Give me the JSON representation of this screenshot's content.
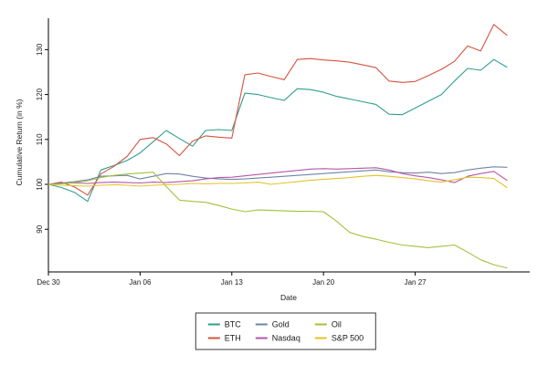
{
  "chart_data": {
    "type": "line",
    "title": "",
    "xlabel": "Date",
    "ylabel": "Cumulative Return (in %)",
    "grid": "off",
    "legend_position": "bottom-center",
    "ylim": [
      80.5,
      138
    ],
    "y_ticks": [
      90,
      100,
      110,
      120,
      130
    ],
    "x_tick_labels": [
      "Dec 30",
      "Jan 06",
      "Jan 13",
      "Jan 20",
      "Jan 27"
    ],
    "x_tick_positions": [
      0,
      7,
      14,
      21,
      28
    ],
    "x": [
      "Dec 30",
      "Dec 31",
      "Jan 01",
      "Jan 02",
      "Jan 03",
      "Jan 04",
      "Jan 05",
      "Jan 06",
      "Jan 07",
      "Jan 08",
      "Jan 09",
      "Jan 10",
      "Jan 11",
      "Jan 12",
      "Jan 13",
      "Jan 14",
      "Jan 15",
      "Jan 16",
      "Jan 17",
      "Jan 18",
      "Jan 19",
      "Jan 20",
      "Jan 21",
      "Jan 22",
      "Jan 23",
      "Jan 24",
      "Jan 25",
      "Jan 26",
      "Jan 27",
      "Jan 28",
      "Jan 29",
      "Jan 30",
      "Jan 31",
      "Feb 01",
      "Feb 02",
      "Feb 03"
    ],
    "series": [
      {
        "name": "BTC",
        "color": "#2e9e8e",
        "values": [
          100,
          99.3,
          98.2,
          96.2,
          103.2,
          104.2,
          105.3,
          107.0,
          109.5,
          112.0,
          110.2,
          108.5,
          112.0,
          112.2,
          112.0,
          120.3,
          120.0,
          119.3,
          118.7,
          121.3,
          121.1,
          120.5,
          119.6,
          119.0,
          118.4,
          117.8,
          115.6,
          115.5,
          117.0,
          118.5,
          120.0,
          123.0,
          125.8,
          125.4,
          127.8,
          126.1
        ]
      },
      {
        "name": "ETH",
        "color": "#d6533f",
        "values": [
          100,
          100.5,
          99.4,
          97.6,
          102.3,
          104.0,
          106.2,
          110.0,
          110.4,
          109.0,
          106.4,
          109.6,
          110.8,
          110.5,
          110.3,
          124.4,
          124.8,
          124.0,
          123.3,
          127.8,
          128.0,
          127.7,
          127.5,
          127.2,
          126.6,
          126.0,
          123.0,
          122.7,
          122.9,
          124.2,
          125.6,
          127.4,
          130.8,
          129.7,
          135.6,
          133.2
        ]
      },
      {
        "name": "Gold",
        "color": "#6d84a8",
        "values": [
          100,
          100.3,
          100.6,
          101.0,
          101.8,
          101.9,
          102.0,
          101.2,
          101.8,
          102.4,
          102.3,
          101.8,
          101.4,
          101.2,
          101.1,
          101.2,
          101.4,
          101.6,
          101.8,
          102.0,
          102.2,
          102.4,
          102.6,
          102.8,
          103.0,
          103.2,
          102.8,
          102.6,
          102.5,
          102.7,
          102.4,
          102.6,
          103.2,
          103.6,
          103.9,
          103.8
        ]
      },
      {
        "name": "Nasdaq",
        "color": "#b656a8",
        "values": [
          100,
          100.2,
          100.3,
          100.2,
          100.4,
          100.5,
          100.4,
          100.3,
          100.5,
          100.4,
          100.6,
          100.8,
          101.2,
          101.5,
          101.6,
          101.9,
          102.2,
          102.5,
          102.8,
          103.1,
          103.4,
          103.5,
          103.4,
          103.5,
          103.6,
          103.7,
          103.2,
          102.4,
          101.9,
          101.5,
          101.0,
          100.4,
          101.8,
          102.4,
          102.9,
          100.9
        ]
      },
      {
        "name": "Oil",
        "color": "#a2c23c",
        "values": [
          100,
          100.1,
          100.4,
          100.8,
          101.5,
          102.0,
          102.3,
          102.5,
          102.7,
          99.5,
          96.5,
          96.2,
          96.0,
          95.3,
          94.5,
          93.9,
          94.3,
          94.2,
          94.1,
          94.0,
          94.0,
          93.9,
          91.8,
          89.3,
          88.4,
          87.8,
          87.1,
          86.5,
          86.2,
          85.9,
          86.2,
          86.5,
          84.9,
          83.2,
          82.1,
          81.4
        ]
      },
      {
        "name": "S&P 500",
        "color": "#e3c32a",
        "values": [
          100,
          99.8,
          99.7,
          99.6,
          99.8,
          99.9,
          99.8,
          99.6,
          99.8,
          99.9,
          100.0,
          100.2,
          100.1,
          100.2,
          100.2,
          100.3,
          100.5,
          100.0,
          100.3,
          100.6,
          100.9,
          101.1,
          101.3,
          101.5,
          101.8,
          102.0,
          101.8,
          101.5,
          101.2,
          100.8,
          100.5,
          101.0,
          101.6,
          101.5,
          101.3,
          99.3
        ]
      }
    ],
    "legend_order": [
      "BTC",
      "Gold",
      "Oil",
      "ETH",
      "Nasdaq",
      "S&P 500"
    ]
  }
}
